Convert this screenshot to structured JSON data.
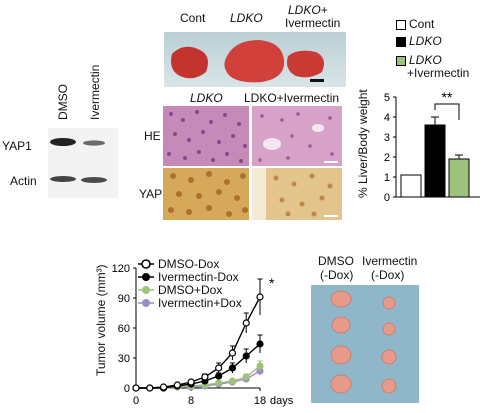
{
  "western": {
    "lanes": [
      "DMSO",
      "Ivermectin"
    ],
    "rows": [
      "YAP1",
      "Actin"
    ]
  },
  "liver": {
    "labels": [
      "Cont",
      "LDKO",
      "LDKO+",
      "Ivermectin"
    ]
  },
  "histology": {
    "cols": [
      "LDKO",
      "LDKO+Ivermectin"
    ],
    "rows": [
      "HE",
      "YAP1"
    ]
  },
  "bar": {
    "legend": [
      "Cont",
      "LDKO",
      "LDKO",
      "+Ivermectin"
    ],
    "ylabel": "% Liver/Body weight",
    "yticks": [
      "0",
      "1",
      "2",
      "3",
      "4",
      "5"
    ],
    "sig": "**",
    "colors": {
      "cont": "#ffffff",
      "ldko": "#000000",
      "iver": "#9dc27a"
    }
  },
  "line": {
    "legend": [
      "DMSO-Dox",
      "Ivermectin-Dox",
      "DMSO+Dox",
      "Ivermectin+Dox"
    ],
    "ylabel": "Tumor volume (mm³)",
    "yticks": [
      "0",
      "30",
      "60",
      "90",
      "120"
    ],
    "xticks": [
      "0",
      "8",
      "18"
    ],
    "xunit": "days",
    "sig": "*"
  },
  "tumor": {
    "labels": [
      "DMSO",
      "(-Dox)",
      "Ivermectin",
      "(-Dox)"
    ]
  },
  "chart_data": [
    {
      "type": "bar",
      "categories": [
        "Cont",
        "LDKO",
        "LDKO+Ivermectin"
      ],
      "values": [
        1.1,
        3.6,
        1.9
      ],
      "errors": [
        0.05,
        0.4,
        0.2
      ],
      "ylabel": "% Liver/Body weight",
      "ylim": [
        0,
        5
      ],
      "legend": [
        "Cont",
        "LDKO",
        "LDKO +Ivermectin"
      ],
      "annotation": "**",
      "colors": [
        "#ffffff",
        "#000000",
        "#9dc27a"
      ]
    },
    {
      "type": "line",
      "xlabel": "days",
      "ylabel": "Tumor volume (mm³)",
      "xlim": [
        0,
        18
      ],
      "ylim": [
        0,
        120
      ],
      "x": [
        0,
        2,
        4,
        6,
        8,
        10,
        12,
        14,
        16,
        18
      ],
      "series": [
        {
          "name": "DMSO-Dox",
          "values": [
            0,
            0,
            1,
            3,
            6,
            11,
            20,
            35,
            65,
            91
          ],
          "errors": [
            0,
            0,
            1,
            1,
            2,
            3,
            5,
            7,
            10,
            18
          ],
          "color": "#000000",
          "marker": "open-circle"
        },
        {
          "name": "Ivermectin-Dox",
          "values": [
            0,
            0,
            0,
            2,
            4,
            7,
            12,
            20,
            32,
            44
          ],
          "errors": [
            0,
            0,
            0,
            1,
            1,
            2,
            3,
            5,
            7,
            9
          ],
          "color": "#000000",
          "marker": "filled-circle"
        },
        {
          "name": "DMSO+Dox",
          "values": [
            0,
            0,
            0,
            1,
            2,
            3,
            5,
            7,
            11,
            22
          ],
          "errors": [
            0,
            0,
            0,
            0,
            1,
            1,
            2,
            2,
            3,
            5
          ],
          "color": "#9dc27a",
          "marker": "filled-circle"
        },
        {
          "name": "Ivermectin+Dox",
          "values": [
            0,
            0,
            0,
            1,
            1,
            2,
            4,
            6,
            9,
            17
          ],
          "errors": [
            0,
            0,
            0,
            0,
            1,
            1,
            1,
            2,
            3,
            4
          ],
          "color": "#9b8cc4",
          "marker": "filled-circle"
        }
      ],
      "annotation": "*"
    }
  ]
}
